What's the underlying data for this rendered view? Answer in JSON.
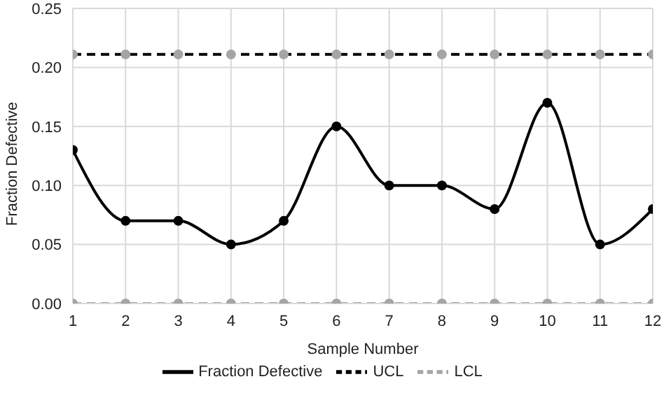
{
  "chart_data": {
    "type": "line",
    "xlabel": "Sample Number",
    "ylabel": "Fraction Defective",
    "x": [
      1,
      2,
      3,
      4,
      5,
      6,
      7,
      8,
      9,
      10,
      11,
      12
    ],
    "xlim": [
      1,
      12
    ],
    "xticks": [
      1,
      2,
      3,
      4,
      5,
      6,
      7,
      8,
      9,
      10,
      11,
      12
    ],
    "ylim": [
      0,
      0.25
    ],
    "yticks": [
      {
        "value": 0,
        "label": "0.00"
      },
      {
        "value": 0.05,
        "label": "0.05"
      },
      {
        "value": 0.1,
        "label": "0.10"
      },
      {
        "value": 0.15,
        "label": "0.15"
      },
      {
        "value": 0.2,
        "label": "0.20"
      },
      {
        "value": 0.25,
        "label": "0.25"
      }
    ],
    "grid": true,
    "legend": "bottom",
    "marker": "circle",
    "series": [
      {
        "name": "Fraction Defective",
        "color": "#000000",
        "line_style": "solid",
        "values": [
          0.13,
          0.07,
          0.07,
          0.05,
          0.07,
          0.15,
          0.1,
          0.1,
          0.08,
          0.17,
          0.05,
          0.08
        ]
      },
      {
        "name": "UCL",
        "color": "#000000",
        "line_style": "dashed",
        "colors": [
          "#a5a5a5",
          "#a5a5a5",
          "#a5a5a5",
          "#a5a5a5",
          "#a5a5a5",
          "#a5a5a5",
          "#a5a5a5",
          "#a5a5a5",
          "#a5a5a5",
          "#a5a5a5",
          "#a5a5a5",
          "#a5a5a5"
        ],
        "values": [
          0.211,
          0.211,
          0.211,
          0.211,
          0.211,
          0.211,
          0.211,
          0.211,
          0.211,
          0.211,
          0.211,
          0.211
        ]
      },
      {
        "name": "LCL",
        "color": "#a5a5a5",
        "line_style": "dashed",
        "values": [
          0,
          0,
          0,
          0,
          0,
          0,
          0,
          0,
          0,
          0,
          0,
          0
        ]
      }
    ]
  }
}
